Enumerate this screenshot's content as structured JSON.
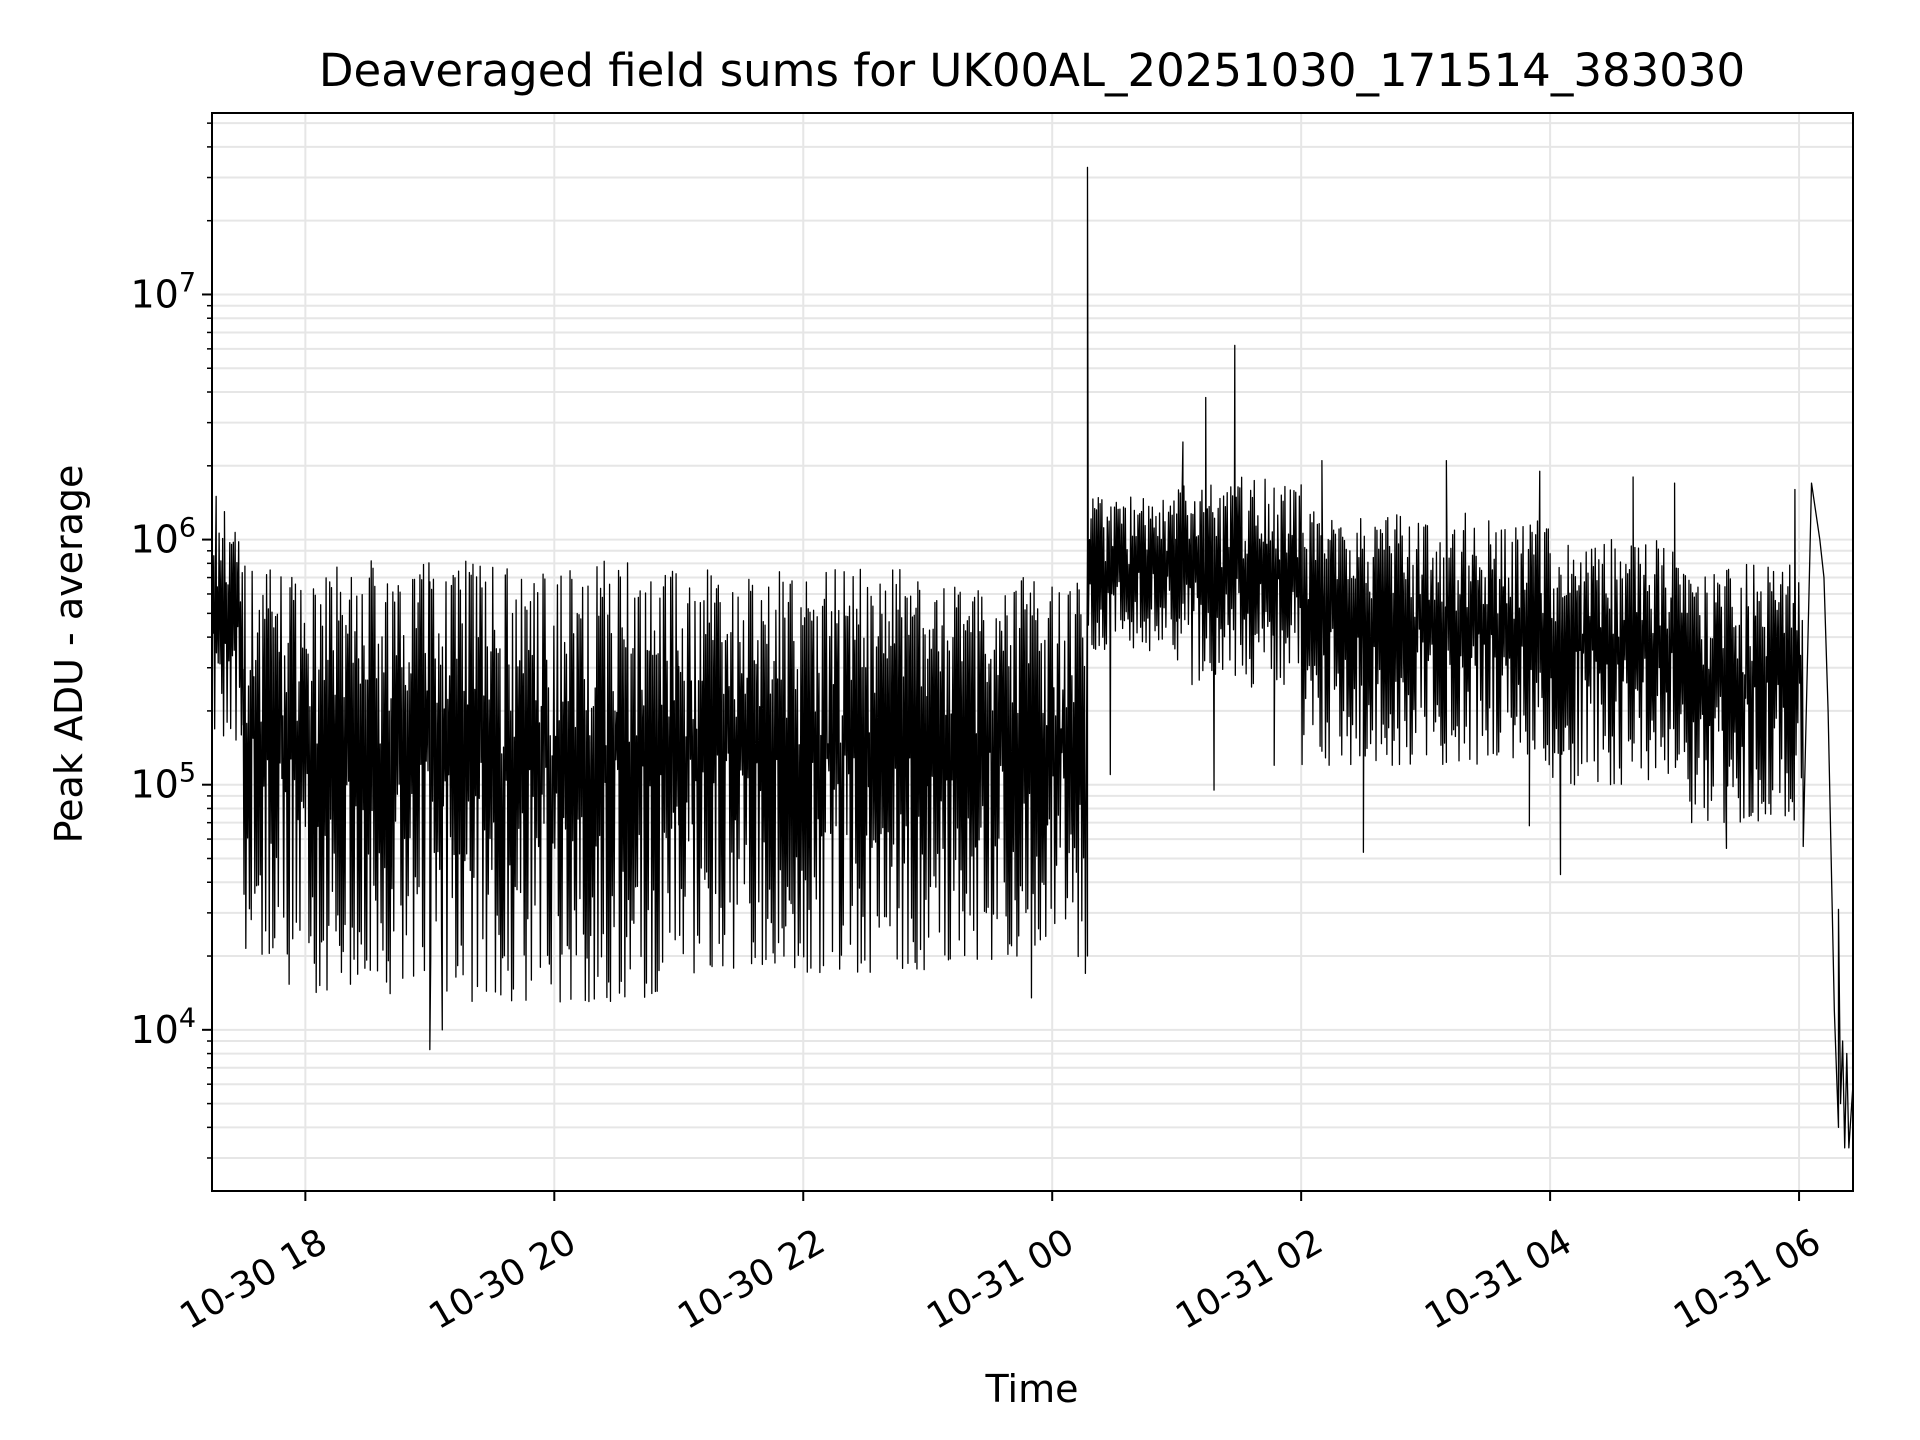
{
  "chart_data": {
    "type": "line",
    "title": "Deaveraged field sums for UK00AL_20251030_171514_383030",
    "xlabel": "Time",
    "ylabel": "Peak ADU - average",
    "yscale": "log",
    "grid": true,
    "legend": "none",
    "line_color": "#000000",
    "grid_color": "#e6e6e6",
    "xlim": [
      "2025-10-30 17:15",
      "2025-10-31 06:26"
    ],
    "ylim": [
      2200,
      55000000
    ],
    "x_ticks": [
      {
        "t": "2025-10-30 18:00",
        "label": "10-30 18"
      },
      {
        "t": "2025-10-30 20:00",
        "label": "10-30 20"
      },
      {
        "t": "2025-10-30 22:00",
        "label": "10-30 22"
      },
      {
        "t": "2025-10-31 00:00",
        "label": "10-31 00"
      },
      {
        "t": "2025-10-31 02:00",
        "label": "10-31 02"
      },
      {
        "t": "2025-10-31 04:00",
        "label": "10-31 04"
      },
      {
        "t": "2025-10-31 06:00",
        "label": "10-31 06"
      }
    ],
    "y_ticks": [
      {
        "value": 10000,
        "base": "10",
        "exp": "4"
      },
      {
        "value": 100000,
        "base": "10",
        "exp": "5"
      },
      {
        "value": 1000000,
        "base": "10",
        "exp": "6"
      },
      {
        "value": 10000000,
        "base": "10",
        "exp": "7"
      }
    ],
    "series": [
      {
        "segments": [
          {
            "start": "2025-10-30 17:15",
            "end": "2025-10-30 17:30",
            "hi": 1100000,
            "lo": 150000
          },
          {
            "start": "2025-10-30 17:30",
            "end": "2025-10-30 17:50",
            "hi": 850000,
            "lo": 20000
          },
          {
            "start": "2025-10-30 17:50",
            "end": "2025-10-30 19:00",
            "hi": 820000,
            "lo": 14000
          },
          {
            "start": "2025-10-30 19:00",
            "end": "2025-10-30 21:00",
            "hi": 820000,
            "lo": 13000
          },
          {
            "start": "2025-10-30 21:00",
            "end": "2025-10-30 23:00",
            "hi": 760000,
            "lo": 17000
          },
          {
            "start": "2025-10-30 23:00",
            "end": "2025-10-31 00:16",
            "hi": 700000,
            "lo": 19000
          },
          {
            "start": "2025-10-31 00:17",
            "end": "2025-10-31 01:00",
            "hi": 1500000,
            "lo": 350000
          },
          {
            "start": "2025-10-31 01:00",
            "end": "2025-10-31 02:00",
            "hi": 1800000,
            "lo": 250000
          },
          {
            "start": "2025-10-31 02:00",
            "end": "2025-10-31 03:00",
            "hi": 1300000,
            "lo": 120000
          },
          {
            "start": "2025-10-31 03:00",
            "end": "2025-10-31 04:00",
            "hi": 1300000,
            "lo": 120000
          },
          {
            "start": "2025-10-31 04:00",
            "end": "2025-10-31 05:00",
            "hi": 1000000,
            "lo": 100000
          },
          {
            "start": "2025-10-31 05:00",
            "end": "2025-10-31 06:02",
            "hi": 800000,
            "lo": 70000
          }
        ],
        "points": [
          {
            "t": "2025-10-30 17:15",
            "v": 900000
          },
          {
            "t": "2025-10-30 17:17",
            "v": 1500000
          },
          {
            "t": "2025-10-30 17:21",
            "v": 1300000
          },
          {
            "t": "2025-10-30 19:00",
            "v": 8300
          },
          {
            "t": "2025-10-30 19:06",
            "v": 10000
          },
          {
            "t": "2025-10-30 23:50",
            "v": 13500
          },
          {
            "t": "2025-10-31 00:16",
            "v": 17000
          },
          {
            "t": "2025-10-31 00:17",
            "v": 20000
          },
          {
            "t": "2025-10-31 00:17",
            "v": 33000000
          },
          {
            "t": "2025-10-31 00:18",
            "v": 1000000
          },
          {
            "t": "2025-10-31 00:28",
            "v": 110000
          },
          {
            "t": "2025-10-31 01:03",
            "v": 2500000
          },
          {
            "t": "2025-10-31 01:14",
            "v": 3800000
          },
          {
            "t": "2025-10-31 01:18",
            "v": 95000
          },
          {
            "t": "2025-10-31 01:28",
            "v": 6200000
          },
          {
            "t": "2025-10-31 01:47",
            "v": 120000
          },
          {
            "t": "2025-10-31 02:10",
            "v": 2100000
          },
          {
            "t": "2025-10-31 02:30",
            "v": 53000
          },
          {
            "t": "2025-10-31 03:10",
            "v": 2100000
          },
          {
            "t": "2025-10-31 03:50",
            "v": 68000
          },
          {
            "t": "2025-10-31 03:55",
            "v": 1900000
          },
          {
            "t": "2025-10-31 04:05",
            "v": 43000
          },
          {
            "t": "2025-10-31 04:40",
            "v": 1800000
          },
          {
            "t": "2025-10-31 05:00",
            "v": 1700000
          },
          {
            "t": "2025-10-31 05:25",
            "v": 55000
          },
          {
            "t": "2025-10-31 05:58",
            "v": 1600000
          },
          {
            "t": "2025-10-31 06:02",
            "v": 56000
          },
          {
            "t": "2025-10-31 06:06",
            "v": 1700000
          },
          {
            "t": "2025-10-31 06:10",
            "v": 1000000
          },
          {
            "t": "2025-10-31 06:12",
            "v": 700000
          },
          {
            "t": "2025-10-31 06:14",
            "v": 200000
          },
          {
            "t": "2025-10-31 06:17",
            "v": 12000
          },
          {
            "t": "2025-10-31 06:19",
            "v": 4000
          },
          {
            "t": "2025-10-31 06:19",
            "v": 31000
          },
          {
            "t": "2025-10-31 06:20",
            "v": 5000
          },
          {
            "t": "2025-10-31 06:21",
            "v": 9000
          },
          {
            "t": "2025-10-31 06:22",
            "v": 3300
          },
          {
            "t": "2025-10-31 06:23",
            "v": 8000
          },
          {
            "t": "2025-10-31 06:24",
            "v": 3300
          },
          {
            "t": "2025-10-31 06:26",
            "v": 6000
          }
        ]
      }
    ]
  }
}
